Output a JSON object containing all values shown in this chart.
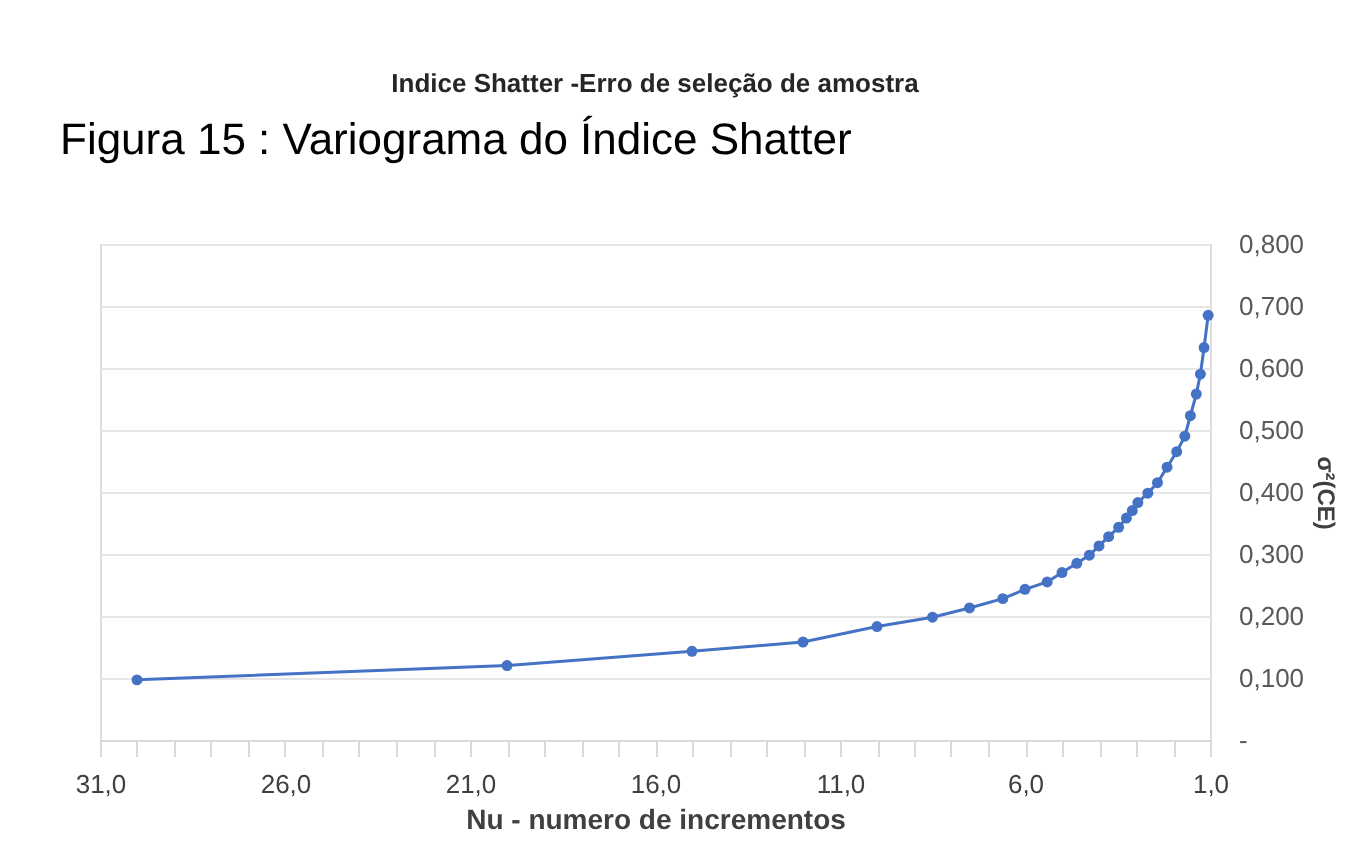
{
  "chart_data": {
    "type": "line",
    "title": "Indice Shatter -Erro de seleção de amostra",
    "annotations": [
      "Figura 15 : Variograma do Índice Shatter"
    ],
    "xlabel": "Nu - numero de incrementos",
    "ylabel": "σ²(CE)",
    "x": [
      30,
      20,
      15,
      12,
      10,
      8.5,
      7.5,
      6.6,
      6.0,
      5.4,
      5.0,
      4.6,
      4.26,
      4.0,
      3.74,
      3.47,
      3.26,
      3.1,
      2.95,
      2.68,
      2.42,
      2.16,
      1.9,
      1.68,
      1.53,
      1.37,
      1.26,
      1.16,
      1.05
    ],
    "series": [
      {
        "color": "#4472c4",
        "values": [
          0.097,
          0.12,
          0.143,
          0.158,
          0.183,
          0.198,
          0.213,
          0.228,
          0.243,
          0.255,
          0.27,
          0.285,
          0.298,
          0.313,
          0.328,
          0.343,
          0.358,
          0.37,
          0.383,
          0.398,
          0.415,
          0.44,
          0.465,
          0.49,
          0.523,
          0.558,
          0.59,
          0.633,
          0.685
        ]
      }
    ],
    "xlim": [
      31,
      1
    ],
    "xticks": [
      {
        "value": 31,
        "label": "31,0"
      },
      {
        "value": 30,
        "label": null
      },
      {
        "value": 29,
        "label": null
      },
      {
        "value": 28,
        "label": null
      },
      {
        "value": 27,
        "label": null
      },
      {
        "value": 26,
        "label": "26,0"
      },
      {
        "value": 25,
        "label": null
      },
      {
        "value": 24,
        "label": null
      },
      {
        "value": 23,
        "label": null
      },
      {
        "value": 22,
        "label": null
      },
      {
        "value": 21,
        "label": "21,0"
      },
      {
        "value": 20,
        "label": null
      },
      {
        "value": 19,
        "label": null
      },
      {
        "value": 18,
        "label": null
      },
      {
        "value": 17,
        "label": null
      },
      {
        "value": 16,
        "label": "16,0"
      },
      {
        "value": 15,
        "label": null
      },
      {
        "value": 14,
        "label": null
      },
      {
        "value": 13,
        "label": null
      },
      {
        "value": 12,
        "label": null
      },
      {
        "value": 11,
        "label": "11,0"
      },
      {
        "value": 10,
        "label": null
      },
      {
        "value": 9,
        "label": null
      },
      {
        "value": 8,
        "label": null
      },
      {
        "value": 7,
        "label": null
      },
      {
        "value": 6,
        "label": "6,0"
      },
      {
        "value": 5,
        "label": null
      },
      {
        "value": 4,
        "label": null
      },
      {
        "value": 3,
        "label": null
      },
      {
        "value": 2,
        "label": null
      },
      {
        "value": 1,
        "label": "1,0"
      }
    ],
    "ylim": [
      0,
      0.8
    ],
    "yticks": [
      {
        "value": 0,
        "label": "-"
      },
      {
        "value": 0.1,
        "label": "0,100"
      },
      {
        "value": 0.2,
        "label": "0,200"
      },
      {
        "value": 0.3,
        "label": "0,300"
      },
      {
        "value": 0.4,
        "label": "0,400"
      },
      {
        "value": 0.5,
        "label": "0,500"
      },
      {
        "value": 0.6,
        "label": "0,600"
      },
      {
        "value": 0.7,
        "label": "0,700"
      },
      {
        "value": 0.8,
        "label": "0,800"
      }
    ],
    "grid": "y",
    "marker": "circle",
    "line_style": "solid"
  }
}
